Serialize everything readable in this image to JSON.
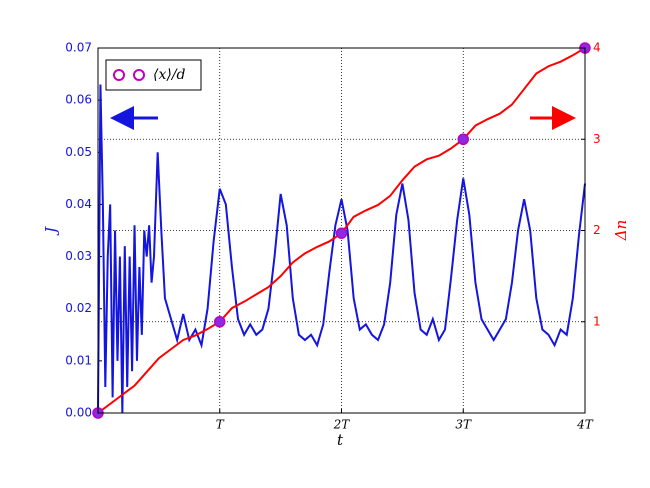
{
  "chart_data": {
    "type": "line",
    "xlabel": "t",
    "ylabel": "J",
    "y2label": "Δn",
    "xlim": [
      0,
      4
    ],
    "xticks": [
      {
        "value": 1,
        "label": "T"
      },
      {
        "value": 2,
        "label": "2T"
      },
      {
        "value": 3,
        "label": "3T"
      },
      {
        "value": 4,
        "label": "4T"
      }
    ],
    "ylim": [
      0,
      0.07
    ],
    "yticks": [
      {
        "value": 0,
        "label": "0.00"
      },
      {
        "value": 0.01,
        "label": "0.01"
      },
      {
        "value": 0.02,
        "label": "0.02"
      },
      {
        "value": 0.03,
        "label": "0.03"
      },
      {
        "value": 0.04,
        "label": "0.04"
      },
      {
        "value": 0.05,
        "label": "0.05"
      },
      {
        "value": 0.06,
        "label": "0.06"
      },
      {
        "value": 0.07,
        "label": "0.07"
      }
    ],
    "y2lim": [
      0,
      4
    ],
    "y2ticks": [
      1,
      2,
      3,
      4
    ],
    "grid": true,
    "legend": "upper left",
    "series": [
      {
        "type": "line",
        "color": "#1515e0",
        "axis": "y",
        "x": [
          0,
          0.02,
          0.04,
          0.06,
          0.08,
          0.1,
          0.12,
          0.14,
          0.16,
          0.18,
          0.2,
          0.22,
          0.24,
          0.26,
          0.28,
          0.3,
          0.32,
          0.34,
          0.36,
          0.38,
          0.4,
          0.42,
          0.44,
          0.46,
          0.49,
          0.52,
          0.55,
          0.6,
          0.65,
          0.7,
          0.75,
          0.8,
          0.85,
          0.9,
          0.95,
          1.0,
          1.05,
          1.1,
          1.15,
          1.2,
          1.25,
          1.3,
          1.35,
          1.4,
          1.45,
          1.5,
          1.55,
          1.6,
          1.65,
          1.7,
          1.75,
          1.8,
          1.85,
          1.9,
          1.95,
          2.0,
          2.05,
          2.1,
          2.15,
          2.2,
          2.25,
          2.3,
          2.35,
          2.4,
          2.45,
          2.5,
          2.55,
          2.6,
          2.65,
          2.7,
          2.75,
          2.8,
          2.85,
          2.9,
          2.95,
          3.0,
          3.05,
          3.1,
          3.15,
          3.2,
          3.25,
          3.3,
          3.35,
          3.4,
          3.45,
          3.5,
          3.55,
          3.6,
          3.65,
          3.7,
          3.75,
          3.8,
          3.85,
          3.9,
          3.95,
          4.0
        ],
        "values": [
          0.0,
          0.063,
          0.04,
          0.005,
          0.03,
          0.04,
          0.003,
          0.035,
          0.01,
          0.03,
          0.0,
          0.032,
          0.005,
          0.03,
          0.008,
          0.036,
          0.01,
          0.028,
          0.015,
          0.035,
          0.03,
          0.036,
          0.025,
          0.03,
          0.05,
          0.035,
          0.022,
          0.018,
          0.014,
          0.019,
          0.014,
          0.016,
          0.013,
          0.02,
          0.033,
          0.043,
          0.04,
          0.028,
          0.018,
          0.015,
          0.017,
          0.015,
          0.016,
          0.02,
          0.03,
          0.042,
          0.036,
          0.022,
          0.015,
          0.014,
          0.015,
          0.013,
          0.017,
          0.027,
          0.036,
          0.041,
          0.035,
          0.022,
          0.016,
          0.017,
          0.015,
          0.014,
          0.017,
          0.025,
          0.038,
          0.044,
          0.037,
          0.023,
          0.016,
          0.015,
          0.018,
          0.014,
          0.016,
          0.026,
          0.037,
          0.045,
          0.038,
          0.025,
          0.018,
          0.016,
          0.014,
          0.016,
          0.018,
          0.025,
          0.035,
          0.041,
          0.035,
          0.022,
          0.016,
          0.015,
          0.013,
          0.016,
          0.015,
          0.022,
          0.034,
          0.044
        ]
      },
      {
        "type": "line",
        "color": "#ff0000",
        "axis": "y2",
        "x": [
          0,
          0.1,
          0.2,
          0.3,
          0.4,
          0.5,
          0.6,
          0.7,
          0.8,
          0.9,
          1.0,
          1.1,
          1.2,
          1.3,
          1.4,
          1.5,
          1.6,
          1.7,
          1.8,
          1.9,
          2.0,
          2.1,
          2.2,
          2.3,
          2.4,
          2.5,
          2.6,
          2.7,
          2.8,
          2.9,
          3.0,
          3.1,
          3.2,
          3.3,
          3.4,
          3.5,
          3.6,
          3.7,
          3.8,
          3.9,
          4.0
        ],
        "values": [
          0,
          0.1,
          0.2,
          0.3,
          0.45,
          0.6,
          0.7,
          0.8,
          0.85,
          0.92,
          1.0,
          1.15,
          1.22,
          1.3,
          1.38,
          1.5,
          1.65,
          1.75,
          1.82,
          1.88,
          1.97,
          2.15,
          2.22,
          2.28,
          2.38,
          2.55,
          2.7,
          2.78,
          2.82,
          2.9,
          3.0,
          3.15,
          3.22,
          3.28,
          3.38,
          3.55,
          3.72,
          3.8,
          3.85,
          3.92,
          4.0
        ]
      },
      {
        "type": "scatter",
        "name": "⟨x⟩/d",
        "color": "#bf00bf",
        "axis": "y2",
        "x": [
          0,
          1,
          2,
          3,
          4
        ],
        "values": [
          0,
          1,
          1.97,
          3,
          4
        ]
      }
    ]
  }
}
